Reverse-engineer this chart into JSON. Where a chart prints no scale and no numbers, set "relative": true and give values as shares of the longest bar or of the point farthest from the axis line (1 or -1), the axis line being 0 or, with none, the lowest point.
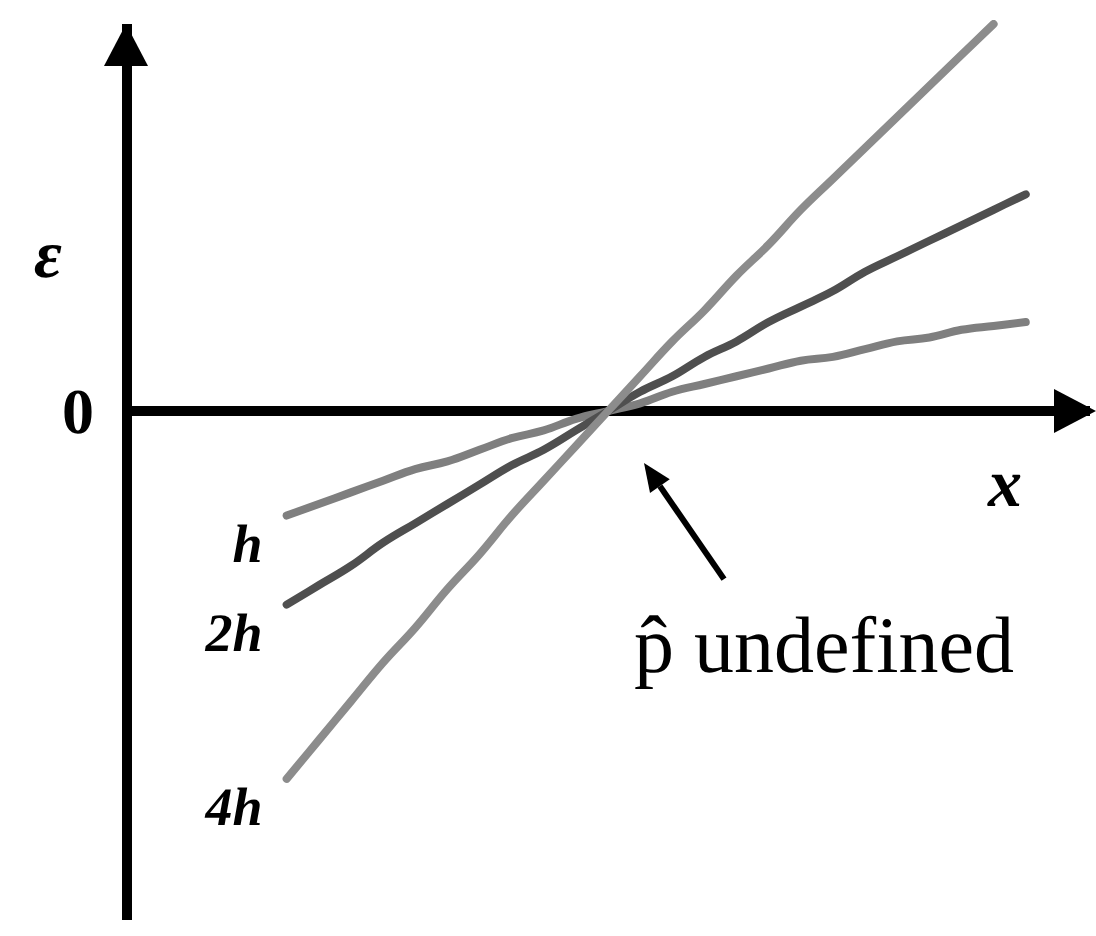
{
  "chart_data": {
    "type": "line",
    "relative": true,
    "xlabel": "x",
    "ylabel": "ε",
    "categories": [
      null,
      null,
      null,
      null,
      null,
      null,
      null,
      null,
      null,
      null,
      null,
      null,
      null,
      null,
      null,
      null,
      null,
      null,
      null,
      null,
      null,
      null,
      null,
      null,
      null,
      null,
      null,
      null,
      null,
      null,
      null
    ],
    "series": [
      {
        "name": "h",
        "color": "#7f7f7f",
        "values": [
          null,
          null,
          null,
          null,
          null,
          -0.27,
          -0.24,
          -0.21,
          -0.18,
          -0.15,
          -0.13,
          -0.1,
          -0.07,
          -0.05,
          -0.02,
          0,
          0.02,
          0.05,
          0.07,
          0.09,
          0.11,
          0.13,
          0.14,
          0.16,
          0.18,
          0.19,
          0.21,
          0.22,
          0.23,
          null,
          null
        ]
      },
      {
        "name": "2h",
        "color": "#4f4f4f",
        "values": [
          null,
          null,
          null,
          null,
          null,
          -0.5,
          -0.45,
          -0.4,
          -0.34,
          -0.29,
          -0.24,
          -0.19,
          -0.14,
          -0.1,
          -0.05,
          0,
          0.05,
          0.09,
          0.14,
          0.18,
          0.23,
          0.27,
          0.31,
          0.36,
          0.4,
          0.44,
          0.48,
          0.52,
          0.56,
          null,
          null
        ]
      },
      {
        "name": "4h",
        "color": "#8c8c8c",
        "values": [
          null,
          null,
          null,
          null,
          null,
          -0.95,
          -0.85,
          -0.75,
          -0.65,
          -0.56,
          -0.46,
          -0.37,
          -0.27,
          -0.18,
          -0.09,
          0,
          0.09,
          0.18,
          0.26,
          0.35,
          0.43,
          0.52,
          0.6,
          0.68,
          0.76,
          0.84,
          0.92,
          1,
          null,
          null,
          null
        ]
      }
    ],
    "annotations": [
      "0",
      "p̂ undefined"
    ]
  }
}
